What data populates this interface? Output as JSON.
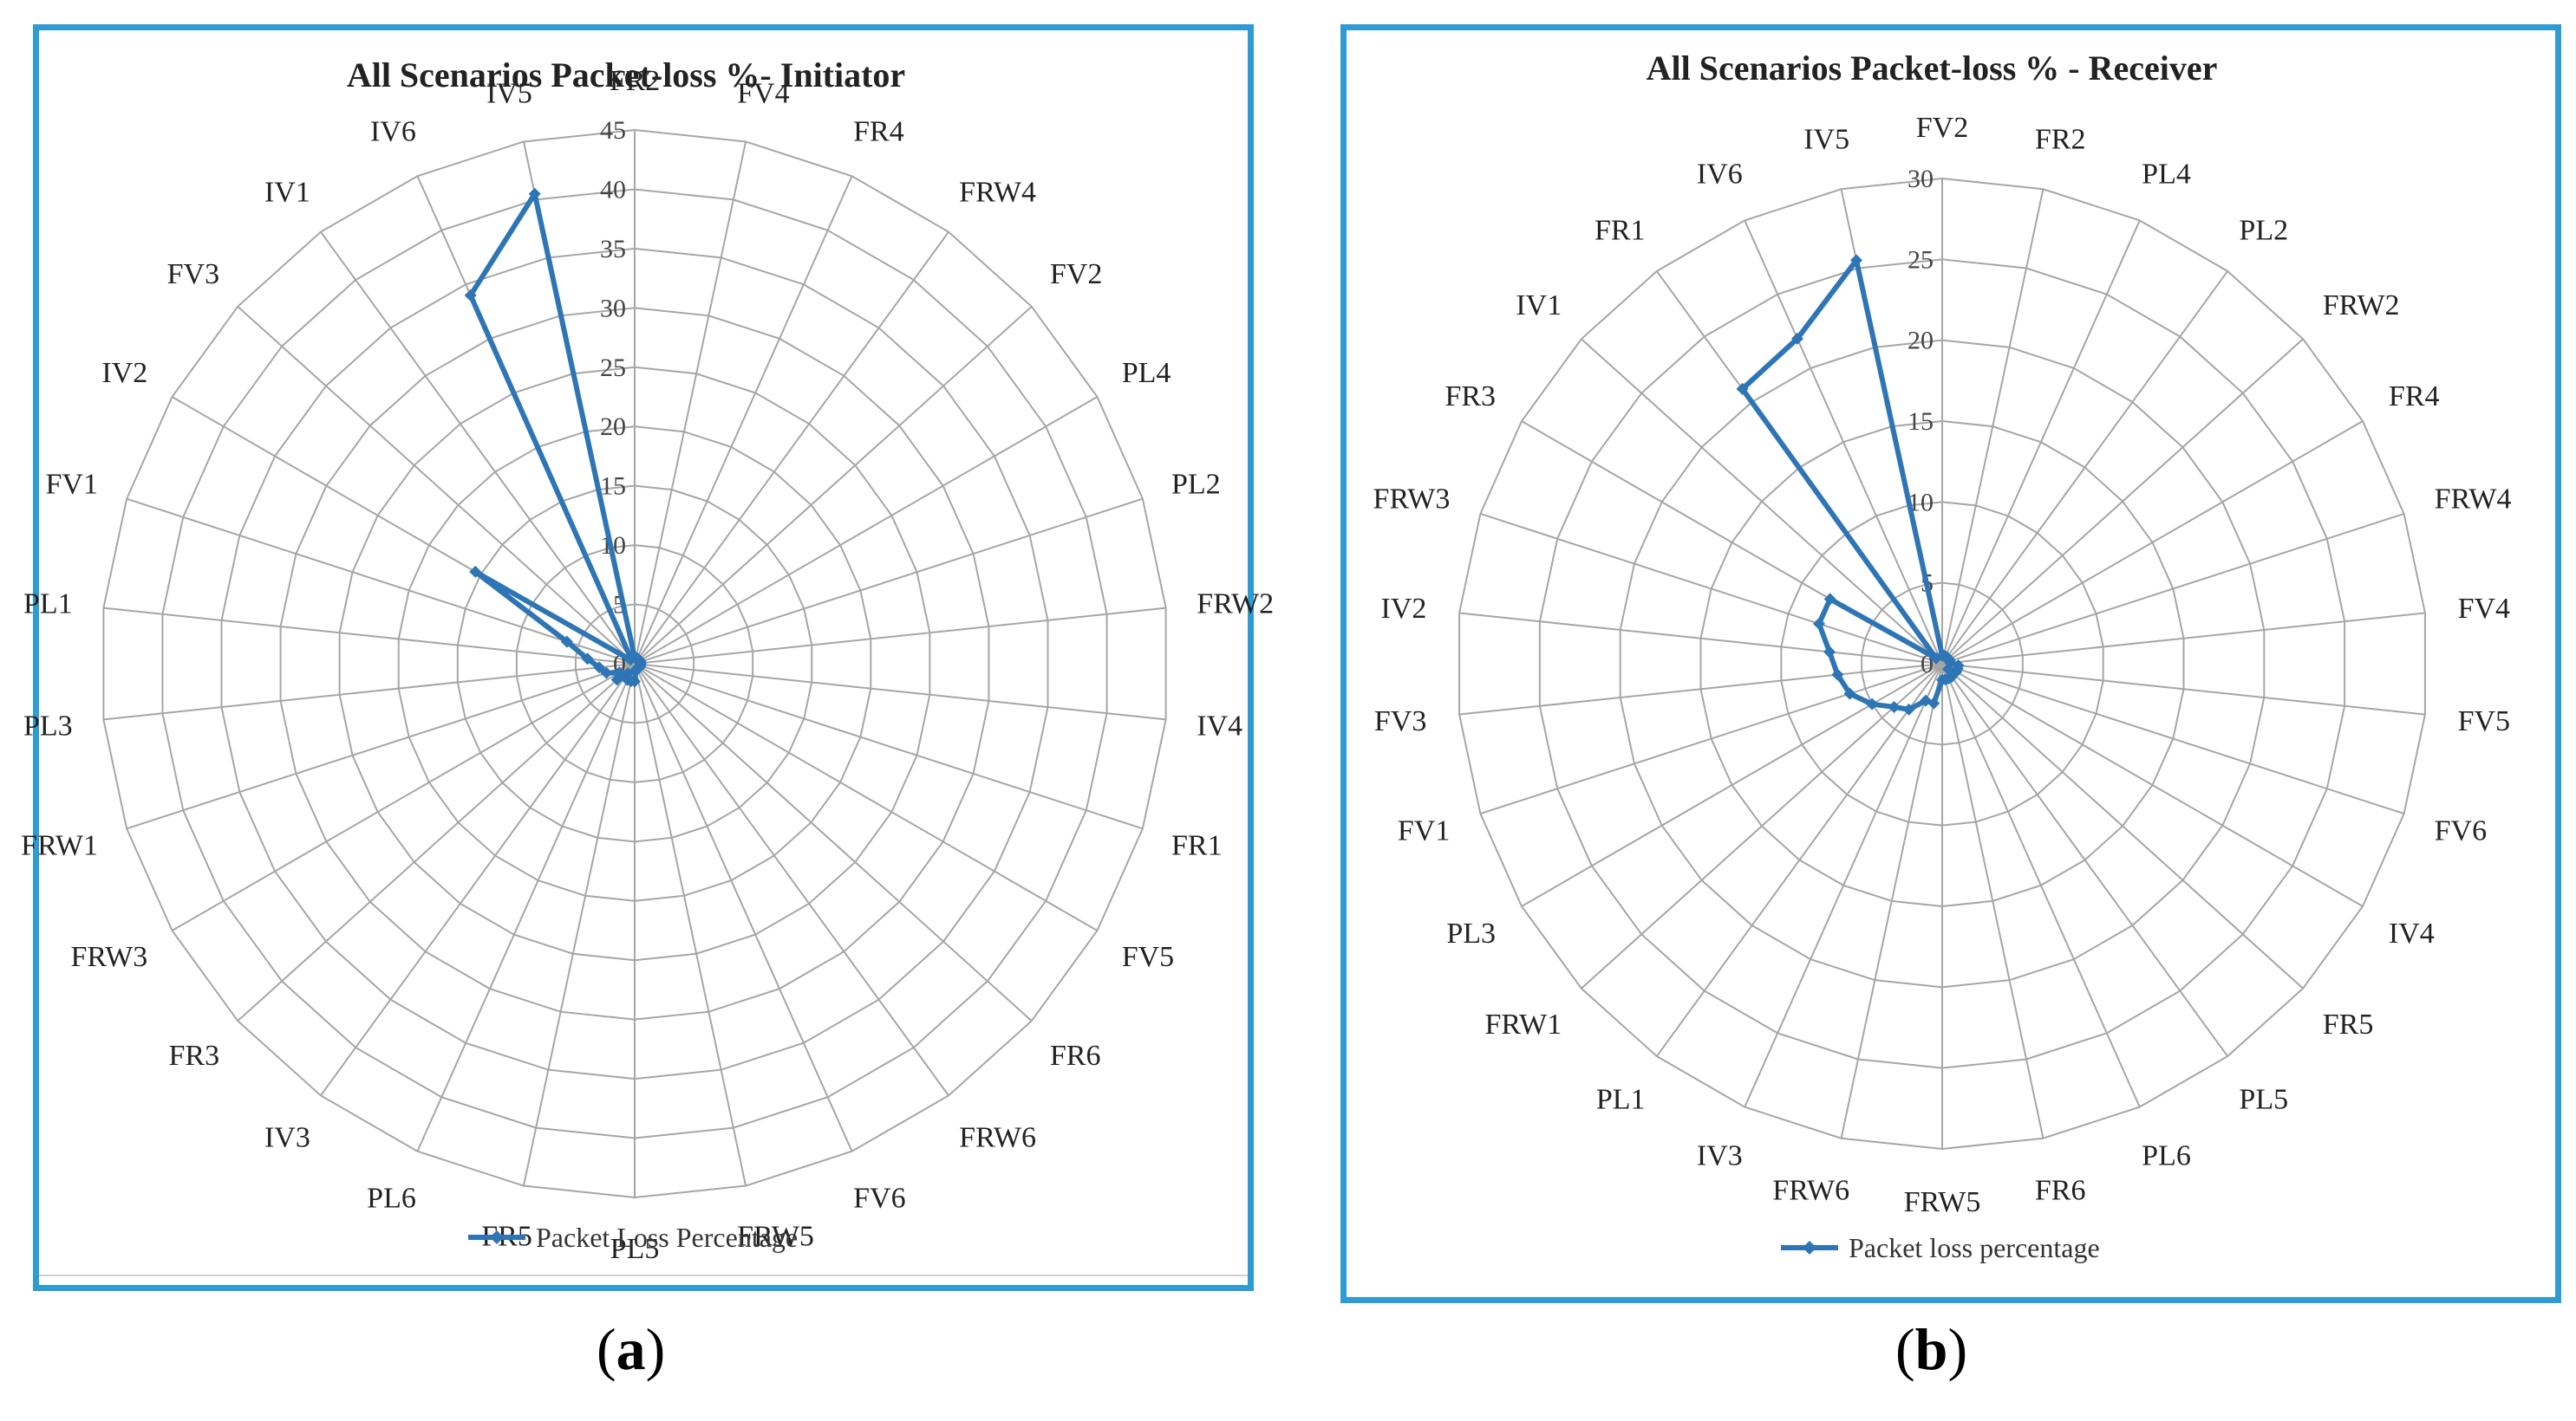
{
  "chart_data": [
    {
      "id": "a",
      "type": "radar",
      "title": "All Scenarios Packet-loss %- Initiator",
      "legend": "Packet Loss Percentage",
      "legend_position": "bottom",
      "panel_label": "a",
      "rmax": 45,
      "ticks": [
        0,
        5,
        10,
        15,
        20,
        25,
        30,
        35,
        40,
        45
      ],
      "categories": [
        "FR2",
        "FV4",
        "FR4",
        "FRW4",
        "FV2",
        "PL4",
        "PL2",
        "FRW2",
        "IV4",
        "FR1",
        "FV5",
        "FR6",
        "FRW6",
        "FV6",
        "FRW5",
        "PL5",
        "FR5",
        "PL6",
        "IV3",
        "FR3",
        "FRW3",
        "FRW1",
        "PL3",
        "PL1",
        "FV1",
        "IV2",
        "FV3",
        "IV1",
        "IV6",
        "IV5"
      ],
      "values": [
        0.5,
        0.5,
        0.5,
        0.5,
        0.5,
        0.5,
        0.5,
        0.5,
        0.5,
        0.5,
        0.5,
        0.5,
        0.5,
        0.5,
        0.5,
        1.5,
        1.5,
        1.5,
        1,
        2,
        1.5,
        2.5,
        3,
        4,
        6,
        15.5,
        0.5,
        0.5,
        34,
        40.5
      ]
    },
    {
      "id": "b",
      "type": "radar",
      "title": "All Scenarios Packet-loss % - Receiver",
      "legend": "Packet loss percentage",
      "legend_position": "bottom",
      "panel_label": "b",
      "rmax": 30,
      "ticks": [
        0,
        5,
        10,
        15,
        20,
        25,
        30
      ],
      "categories": [
        "FV2",
        "FR2",
        "PL4",
        "PL2",
        "FRW2",
        "FR4",
        "FRW4",
        "FV4",
        "FV5",
        "FV6",
        "IV4",
        "FR5",
        "PL5",
        "PL6",
        "FR6",
        "FRW5",
        "FRW6",
        "IV3",
        "PL1",
        "FRW1",
        "PL3",
        "FV1",
        "FV3",
        "IV2",
        "FRW3",
        "FR3",
        "IV1",
        "FR1",
        "IV6",
        "IV5"
      ],
      "values": [
        0.5,
        0.5,
        0.5,
        0.5,
        0.5,
        0.5,
        0.5,
        0.5,
        1,
        1,
        1,
        0.5,
        1,
        1,
        1,
        1,
        2.5,
        2.5,
        3.5,
        4,
        5,
        6,
        6.5,
        7,
        8,
        8,
        0.5,
        21,
        22,
        25.5
      ]
    }
  ]
}
